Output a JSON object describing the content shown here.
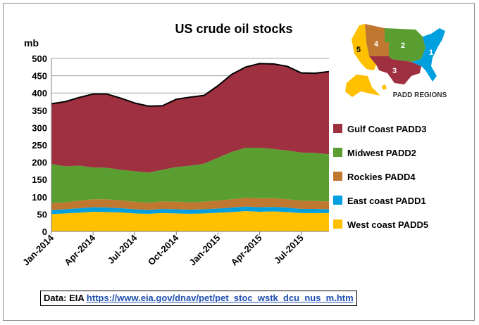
{
  "chart_data": {
    "type": "area",
    "stacked": true,
    "title": "US crude oil stocks",
    "ylabel": "mb",
    "xlabel": "",
    "ylim": [
      0,
      500
    ],
    "yticks": [
      0,
      50,
      100,
      150,
      200,
      250,
      300,
      350,
      400,
      450,
      500
    ],
    "grid": true,
    "legend_position": "right",
    "x": [
      "Jan-2014",
      "Feb-2014",
      "Mar-2014",
      "Apr-2014",
      "May-2014",
      "Jun-2014",
      "Jul-2014",
      "Aug-2014",
      "Sep-2014",
      "Oct-2014",
      "Nov-2014",
      "Dec-2014",
      "Jan-2015",
      "Feb-2015",
      "Mar-2015",
      "Apr-2015",
      "May-2015",
      "Jun-2015",
      "Jul-2015",
      "Aug-2015",
      "Sep-2015"
    ],
    "x_tick_labels": [
      "Jan-2014",
      "Apr-2014",
      "Jul-2014",
      "Oct-2014",
      "Jan-2015",
      "Apr-2015",
      "Jul-2015"
    ],
    "x_tick_indices": [
      0,
      3,
      6,
      9,
      12,
      15,
      18
    ],
    "series": [
      {
        "name": "West coast  PADD5",
        "color": "#ffc000",
        "values": [
          50,
          52,
          54,
          57,
          56,
          55,
          52,
          51,
          53,
          52,
          51,
          52,
          54,
          56,
          59,
          57,
          58,
          56,
          53,
          53,
          53
        ]
      },
      {
        "name": "East coast  PADD1",
        "color": "#00a0e0",
        "values": [
          12,
          12,
          13,
          13,
          13,
          12,
          12,
          11,
          12,
          12,
          12,
          12,
          12,
          13,
          13,
          13,
          13,
          13,
          12,
          12,
          11
        ]
      },
      {
        "name": "Rockies   PADD4",
        "color": "#c07830",
        "values": [
          20,
          20,
          22,
          23,
          24,
          23,
          22,
          21,
          22,
          22,
          21,
          22,
          23,
          24,
          25,
          26,
          25,
          24,
          24,
          23,
          23
        ]
      },
      {
        "name": "Midwest  PADD2",
        "color": "#5a9e32",
        "values": [
          113,
          104,
          101,
          92,
          91,
          88,
          88,
          87,
          91,
          100,
          106,
          110,
          124,
          137,
          145,
          146,
          142,
          141,
          139,
          139,
          136
        ]
      },
      {
        "name": "Gulf Coast   PADD3",
        "color": "#9e3040",
        "values": [
          174,
          187,
          197,
          212,
          213,
          207,
          197,
          192,
          185,
          196,
          198,
          197,
          208,
          224,
          233,
          243,
          246,
          243,
          230,
          230,
          239
        ]
      }
    ],
    "total_line": {
      "color": "#000000",
      "values": [
        369,
        375,
        387,
        397,
        397,
        385,
        371,
        362,
        363,
        382,
        388,
        393,
        421,
        454,
        475,
        485,
        484,
        477,
        458,
        457,
        462
      ]
    }
  },
  "inset_map": {
    "caption": "PADD REGIONS",
    "regions": [
      {
        "label": "1",
        "color": "#00a0e0"
      },
      {
        "label": "2",
        "color": "#5a9e32"
      },
      {
        "label": "3",
        "color": "#9e3040"
      },
      {
        "label": "4",
        "color": "#c07830"
      },
      {
        "label": "5",
        "color": "#ffc000"
      }
    ]
  },
  "source": {
    "prefix": "Data: EIA ",
    "url_text": "https://www.eia.gov/dnav/pet/pet_stoc_wstk_dcu_nus_m.htm"
  }
}
